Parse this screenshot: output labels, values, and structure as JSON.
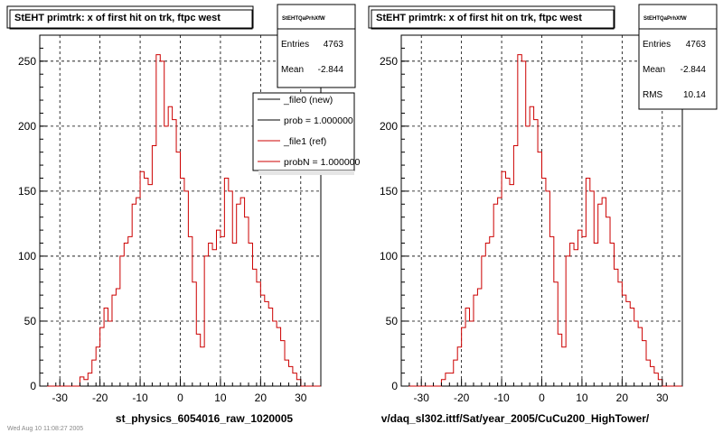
{
  "chart_data": [
    {
      "type": "bar",
      "title": "StEHT primtrk: x of first hit on trk, ftpc west",
      "xlabel": "st_physics_6054016_raw_1020005",
      "ylabel": "",
      "xlim": [
        -35,
        35
      ],
      "ylim": [
        0,
        270
      ],
      "x_ticks": [
        -30,
        -20,
        -10,
        0,
        10,
        20,
        30
      ],
      "y_ticks": [
        0,
        50,
        100,
        150,
        200,
        250
      ],
      "grid": true,
      "bin_start": -35,
      "bin_width": 1,
      "series": [
        {
          "name": "_file1 (ref)",
          "color": "#cc0000",
          "values": [
            0,
            0,
            0,
            0,
            0,
            0,
            0,
            0,
            0,
            0,
            7,
            5,
            10,
            20,
            30,
            45,
            60,
            50,
            70,
            75,
            100,
            110,
            115,
            140,
            145,
            165,
            160,
            155,
            185,
            255,
            250,
            200,
            215,
            205,
            180,
            160,
            150,
            115,
            80,
            40,
            30,
            100,
            110,
            105,
            120,
            115,
            160,
            150,
            110,
            140,
            145,
            130,
            110,
            90,
            80,
            70,
            65,
            60,
            50,
            45,
            35,
            20,
            15,
            10,
            5,
            0,
            0,
            0,
            0,
            0
          ]
        }
      ],
      "stats": {
        "header": "StEHTQaPrhXfW",
        "entries_label": "Entries",
        "entries": "4763",
        "mean_label": "Mean",
        "mean": "-2.844"
      },
      "legend": [
        {
          "label": "_file0 (new)",
          "color": "#000000"
        },
        {
          "label": "prob = 1.000000",
          "color": "#000000"
        },
        {
          "label": "_file1 (ref)",
          "color": "#cc0000"
        },
        {
          "label": "probN = 1.000000",
          "color": "#cc0000"
        }
      ]
    },
    {
      "type": "bar",
      "title": "StEHT primtrk: x of first hit on trk, ftpc west",
      "xlabel": "v/daq_sl302.ittf/Sat/year_2005/CuCu200_HighTower/",
      "ylabel": "",
      "xlim": [
        -35,
        35
      ],
      "ylim": [
        0,
        270
      ],
      "x_ticks": [
        -30,
        -20,
        -10,
        0,
        10,
        20,
        30
      ],
      "y_ticks": [
        0,
        50,
        100,
        150,
        200,
        250
      ],
      "grid": true,
      "bin_start": -35,
      "bin_width": 1,
      "series": [
        {
          "name": "",
          "color": "#cc0000",
          "values": [
            0,
            0,
            0,
            0,
            0,
            0,
            0,
            0,
            0,
            0,
            5,
            10,
            10,
            20,
            30,
            45,
            60,
            50,
            70,
            75,
            100,
            110,
            115,
            140,
            145,
            165,
            160,
            155,
            185,
            255,
            250,
            200,
            215,
            205,
            180,
            160,
            150,
            115,
            80,
            40,
            30,
            100,
            110,
            105,
            120,
            115,
            160,
            150,
            110,
            140,
            145,
            130,
            110,
            90,
            80,
            70,
            65,
            60,
            50,
            45,
            35,
            20,
            15,
            10,
            5,
            0,
            0,
            0,
            0,
            0
          ]
        }
      ],
      "stats": {
        "header": "StEHTQaPrhXfW",
        "entries_label": "Entries",
        "entries": "4763",
        "mean_label": "Mean",
        "mean": "-2.844",
        "rms_label": "RMS",
        "rms": "10.14"
      }
    }
  ],
  "footer": "Wed Aug 10 11:08:27 2005"
}
